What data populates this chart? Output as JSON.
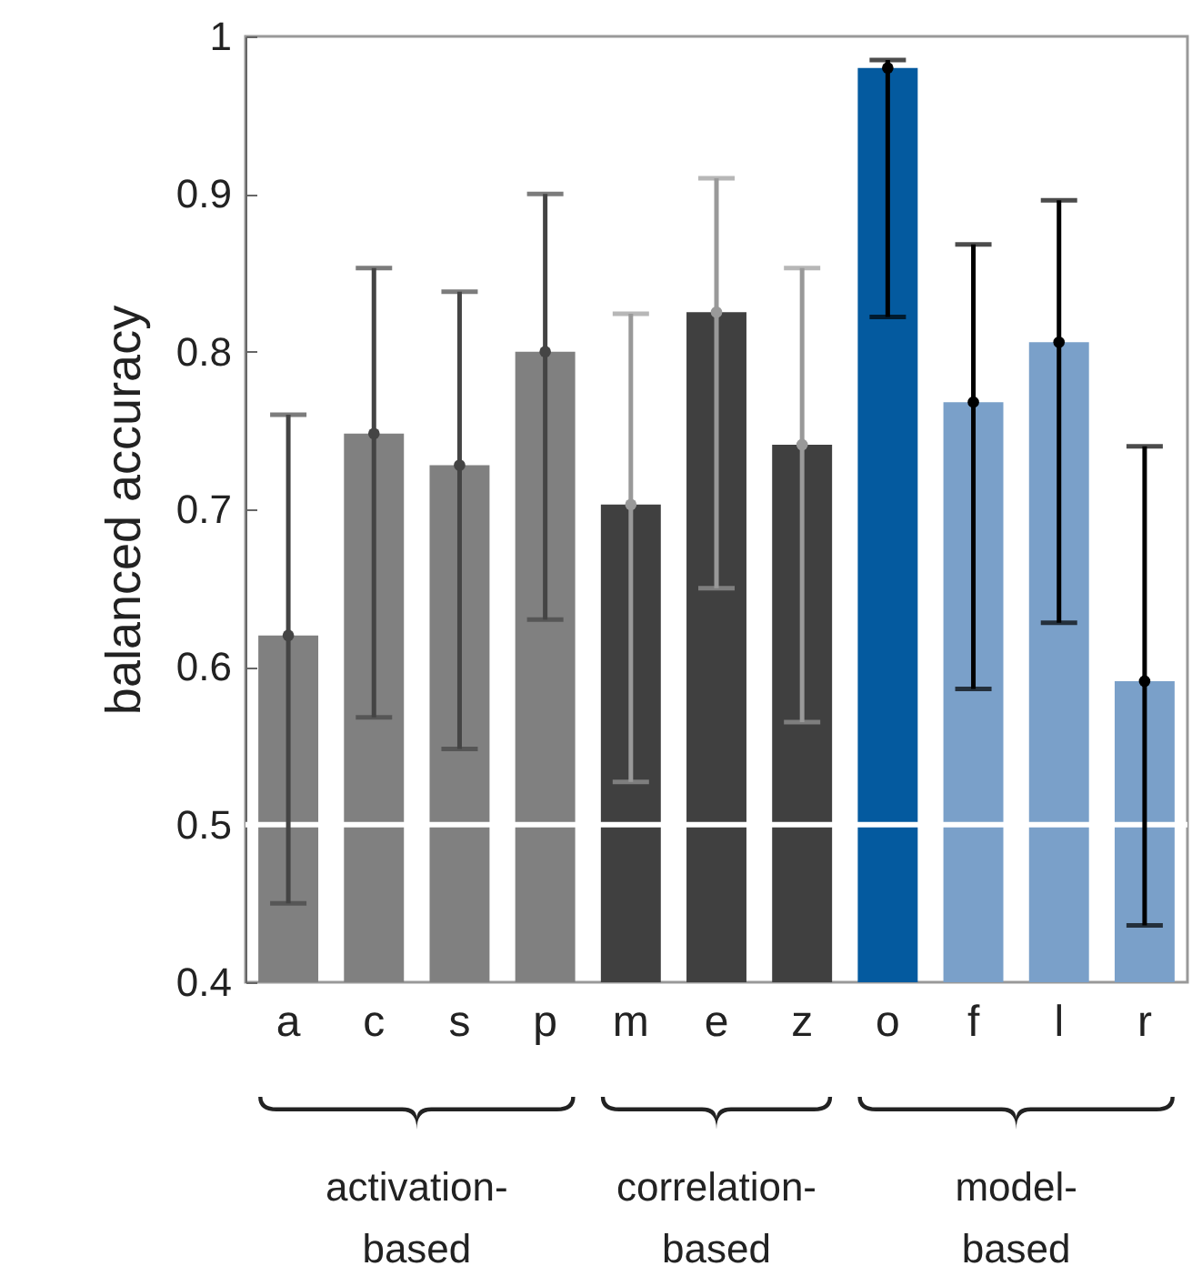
{
  "chart_data": {
    "type": "bar",
    "ylabel": "balanced accuracy",
    "categories": [
      "a",
      "c",
      "s",
      "p",
      "m",
      "e",
      "z",
      "o",
      "f",
      "l",
      "r"
    ],
    "series": [
      {
        "values": [
          0.62,
          0.748,
          0.728,
          0.8,
          0.703,
          0.825,
          0.741,
          0.98,
          0.768,
          0.806,
          0.591
        ],
        "colors": [
          "#808080",
          "#808080",
          "#808080",
          "#808080",
          "#404040",
          "#404040",
          "#404040",
          "#045a9f",
          "#7aa0c9",
          "#7aa0c9",
          "#7aa0c9"
        ],
        "errors": [
          [
            0.45,
            0.76
          ],
          [
            0.568,
            0.853
          ],
          [
            0.548,
            0.838
          ],
          [
            0.63,
            0.9
          ],
          [
            0.527,
            0.824
          ],
          [
            0.65,
            0.91
          ],
          [
            0.565,
            0.853
          ],
          [
            0.822,
            0.985
          ],
          [
            0.586,
            0.868
          ],
          [
            0.628,
            0.896
          ],
          [
            0.436,
            0.74
          ]
        ]
      },
      {
        "type": "scatter",
        "x": [
          "a",
          "c",
          "s",
          "p",
          "m",
          "e",
          "z",
          "o",
          "f",
          "l",
          "r"
        ],
        "values": [
          0.62,
          0.748,
          0.728,
          0.8,
          0.703,
          0.825,
          0.741,
          0.98,
          0.768,
          0.806,
          0.591
        ],
        "colors": [
          "#444444",
          "#444444",
          "#444444",
          "#444444",
          "#999999",
          "#999999",
          "#999999",
          "#000000",
          "#000000",
          "#000000",
          "#000000"
        ]
      }
    ],
    "ylim": [
      0.4,
      1
    ],
    "yticks": [
      0.4,
      0.5,
      0.6,
      0.7,
      0.8,
      0.9,
      1
    ],
    "ref_lines": [
      {
        "axis": "y",
        "value": 0.5,
        "color": "#ffffff"
      }
    ],
    "annotations": [
      "activation-based",
      "correlation-based",
      "model-based"
    ]
  }
}
